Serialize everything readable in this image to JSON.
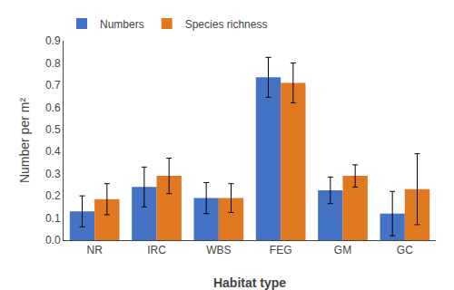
{
  "chart_data": {
    "type": "bar",
    "categories": [
      "NR",
      "IRC",
      "WBS",
      "FEG",
      "GM",
      "GC"
    ],
    "series": [
      {
        "name": "Numbers",
        "color": "#4472C4",
        "values": [
          0.13,
          0.24,
          0.19,
          0.735,
          0.225,
          0.12
        ],
        "errors": [
          0.07,
          0.09,
          0.07,
          0.09,
          0.06,
          0.1
        ]
      },
      {
        "name": "Species richness",
        "color": "#E07820",
        "values": [
          0.185,
          0.29,
          0.19,
          0.71,
          0.29,
          0.23
        ],
        "errors": [
          0.07,
          0.08,
          0.065,
          0.09,
          0.05,
          0.16
        ]
      }
    ],
    "xlabel": "Habitat type",
    "ylabel": "Number per m²",
    "ylim": [
      0,
      0.9
    ],
    "yticks": [
      {
        "value": 0,
        "label": "0.0"
      },
      0.1,
      0.2,
      0.3,
      0.4,
      0.5,
      0.6,
      0.7,
      0.8,
      0.9
    ],
    "legend": "upper left",
    "grid": false
  }
}
